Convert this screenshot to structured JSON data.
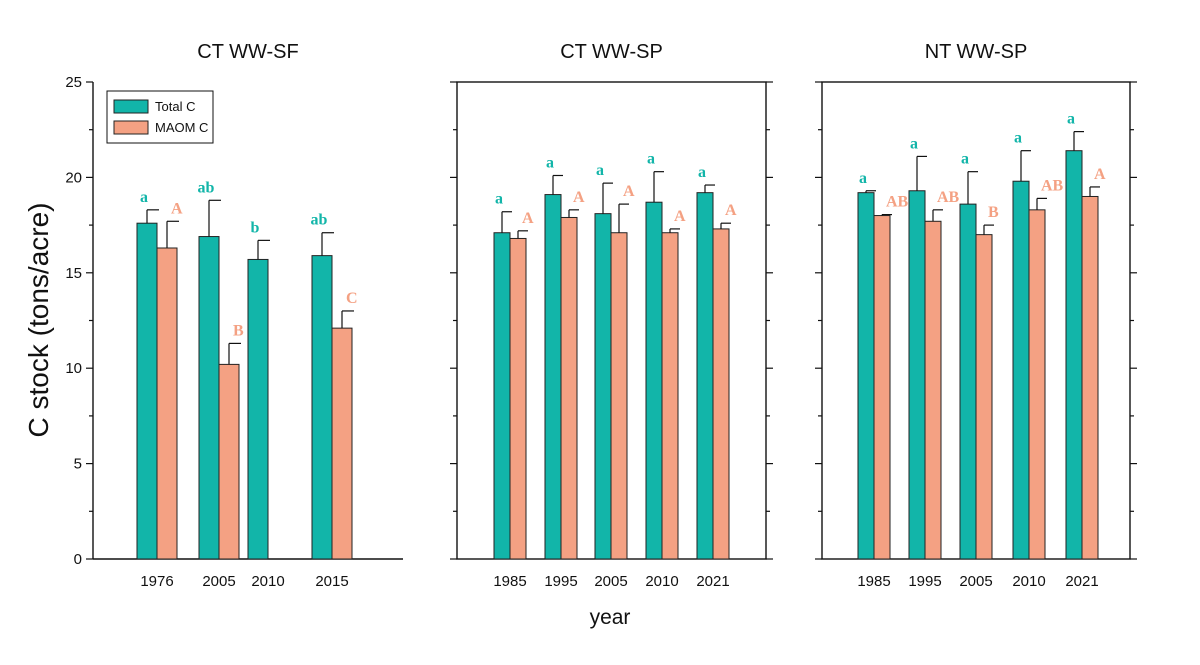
{
  "chart_data": [
    {
      "type": "bar",
      "title": "CT WW-SF",
      "categories": [
        "1976",
        "2005",
        "2010",
        "2015"
      ],
      "series": [
        {
          "name": "Total C",
          "color": "#12b5a9",
          "values": [
            17.6,
            16.9,
            15.7,
            15.9
          ],
          "errors": [
            0.7,
            1.9,
            1.0,
            1.2
          ],
          "letters": [
            "a",
            "ab",
            "b",
            "ab"
          ]
        },
        {
          "name": "MAOM C",
          "color": "#f4a183",
          "values": [
            16.3,
            10.2,
            null,
            12.1
          ],
          "errors": [
            1.4,
            1.1,
            null,
            0.9
          ],
          "letters": [
            "A",
            "B",
            "",
            "C"
          ]
        }
      ],
      "ylim": [
        0,
        25
      ],
      "yticks": [
        "0",
        "5",
        "10",
        "15",
        "20",
        "25"
      ],
      "legend": "top-left"
    },
    {
      "type": "bar",
      "title": "CT WW-SP",
      "categories": [
        "1985",
        "1995",
        "2005",
        "2010",
        "2021"
      ],
      "series": [
        {
          "name": "Total C",
          "color": "#12b5a9",
          "values": [
            17.1,
            19.1,
            18.1,
            18.7,
            19.2
          ],
          "errors": [
            1.1,
            1.0,
            1.6,
            1.6,
            0.4
          ],
          "letters": [
            "a",
            "a",
            "a",
            "a",
            "a"
          ]
        },
        {
          "name": "MAOM C",
          "color": "#f4a183",
          "values": [
            16.8,
            17.9,
            17.1,
            17.1,
            17.3
          ],
          "errors": [
            0.4,
            0.4,
            1.5,
            0.2,
            0.3
          ],
          "letters": [
            "A",
            "A",
            "A",
            "A",
            "A"
          ]
        }
      ],
      "ylim": [
        0,
        25
      ]
    },
    {
      "type": "bar",
      "title": "NT WW-SP",
      "categories": [
        "1985",
        "1995",
        "2005",
        "2010",
        "2021"
      ],
      "series": [
        {
          "name": "Total C",
          "color": "#12b5a9",
          "values": [
            19.2,
            19.3,
            18.6,
            19.8,
            21.4
          ],
          "errors": [
            0.1,
            1.8,
            1.7,
            1.6,
            1.0
          ],
          "letters": [
            "a",
            "a",
            "a",
            "a",
            "a"
          ]
        },
        {
          "name": "MAOM C",
          "color": "#f4a183",
          "values": [
            18.0,
            17.7,
            17.0,
            18.3,
            19.0
          ],
          "errors": [
            0.05,
            0.6,
            0.5,
            0.6,
            0.5
          ],
          "letters": [
            "AB",
            "AB",
            "B",
            "AB",
            "A"
          ]
        }
      ],
      "ylim": [
        0,
        25
      ]
    }
  ],
  "axes": {
    "ylabel": "C stock (tons/acre)",
    "xlabel": "year"
  }
}
